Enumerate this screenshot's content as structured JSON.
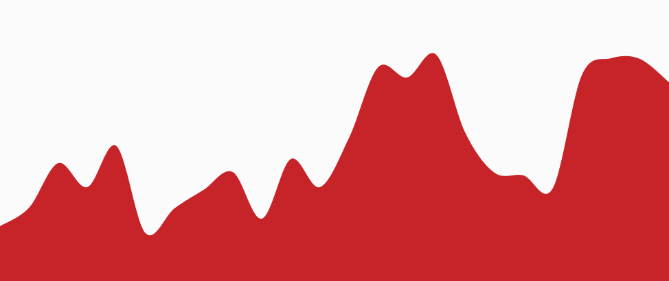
{
  "chart_data": {
    "type": "area",
    "x": [
      0,
      1,
      2,
      3,
      4,
      5,
      6,
      7,
      8,
      9,
      10,
      11,
      12,
      13,
      14,
      15,
      16,
      17,
      18,
      19,
      20,
      21,
      22,
      23
    ],
    "series": [
      {
        "values": [
          80,
          107,
          172,
          137,
          197,
          70,
          106,
          133,
          159,
          91,
          178,
          137,
          209,
          312,
          297,
          330,
          216,
          158,
          154,
          135,
          300,
          325,
          324,
          290
        ],
        "color": "#c62428"
      }
    ],
    "ylim": [
      0,
      410
    ],
    "grid": false,
    "legend": "none",
    "axes_visible": false
  }
}
